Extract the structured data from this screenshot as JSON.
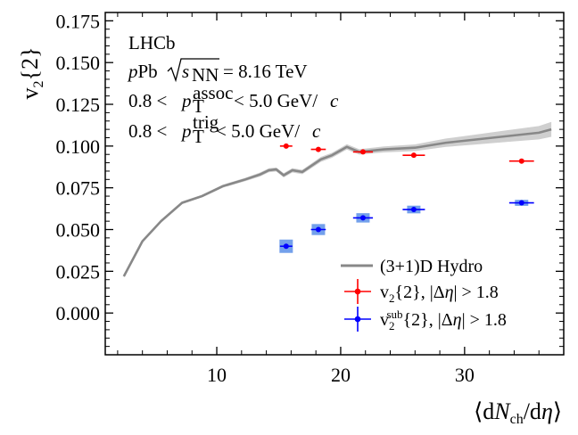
{
  "chart_data": {
    "type": "scatter",
    "title": "",
    "xlabel_parts": [
      "⟨d",
      "N",
      "ch",
      "/d",
      "η",
      "⟩"
    ],
    "ylabel_parts": [
      "v",
      "2",
      "{2}"
    ],
    "xlim": [
      1,
      38
    ],
    "ylim": [
      -0.025,
      0.18
    ],
    "x_ticks": [
      10,
      20,
      30
    ],
    "y_ticks": [
      0.0,
      0.025,
      0.05,
      0.075,
      0.1,
      0.125,
      0.15,
      0.175
    ],
    "x_tick_labels": [
      "10",
      "20",
      "30"
    ],
    "y_tick_labels": [
      "0.000",
      "0.025",
      "0.050",
      "0.075",
      "0.100",
      "0.125",
      "0.150",
      "0.175"
    ],
    "annotations": {
      "experiment": "LHCb",
      "system_p": "p",
      "system_rest": "Pb",
      "sqrt_s_label": "s",
      "sqrt_s_sub": "NN",
      "sqrt_s_value": "= 8.16 TeV",
      "assoc_low": "0.8 <",
      "assoc_p": "p",
      "assoc_sup": "assoc",
      "assoc_sub": "T",
      "assoc_high": "< 5.0 GeV/",
      "assoc_c": "c",
      "trig_low": "0.8 <",
      "trig_p": "p",
      "trig_sup": "trig",
      "trig_sub": "T",
      "trig_high": "< 5.0 GeV/",
      "trig_c": "c"
    },
    "legend_position": "bottom-right",
    "series": [
      {
        "name": "(3+1)D Hydro",
        "kind": "band",
        "color": "#888888",
        "band_color": "#cfcfcf",
        "x": [
          2.5,
          4,
          5.5,
          7.2,
          8.8,
          10.5,
          12.3,
          13.5,
          14.2,
          14.8,
          15.4,
          16.1,
          16.9,
          17.6,
          18.4,
          19.3,
          20.5,
          21.5,
          23.5,
          26,
          28.5,
          31,
          33.5,
          36,
          37
        ],
        "y": [
          0.022,
          0.043,
          0.055,
          0.066,
          0.07,
          0.076,
          0.08,
          0.083,
          0.0855,
          0.086,
          0.0825,
          0.0855,
          0.0845,
          0.088,
          0.092,
          0.0945,
          0.0995,
          0.0965,
          0.098,
          0.099,
          0.102,
          0.104,
          0.106,
          0.108,
          0.11
        ],
        "band_halfwidth": [
          0.0008,
          0.0008,
          0.0008,
          0.0008,
          0.0008,
          0.0009,
          0.001,
          0.0012,
          0.0012,
          0.0012,
          0.0013,
          0.0013,
          0.0013,
          0.0014,
          0.0015,
          0.0015,
          0.0016,
          0.0016,
          0.0018,
          0.002,
          0.0025,
          0.003,
          0.0035,
          0.004,
          0.0045
        ]
      },
      {
        "name_parts": [
          "v",
          "2",
          "{2}, |Δ",
          "η",
          "| > 1.8"
        ],
        "kind": "points",
        "color": "#ff0000",
        "x": [
          15.6,
          18.2,
          21.8,
          25.9,
          34.6
        ],
        "y": [
          0.1,
          0.098,
          0.0965,
          0.0945,
          0.091
        ],
        "x_err": [
          0.5,
          0.6,
          0.8,
          0.9,
          1.0
        ],
        "y_err": [
          0.0005,
          0.0005,
          0.0005,
          0.0005,
          0.0005
        ]
      },
      {
        "name_parts": [
          "v",
          "2",
          "sub",
          "{2}, |Δ",
          "η",
          "| > 1.8"
        ],
        "kind": "points_box",
        "color": "#0000ff",
        "box_color": "#5b8fe8",
        "x": [
          15.6,
          18.2,
          21.8,
          25.9,
          34.6
        ],
        "y": [
          0.04,
          0.05,
          0.057,
          0.062,
          0.066
        ],
        "x_err": [
          0.5,
          0.6,
          0.8,
          0.9,
          1.0
        ],
        "y_err": [
          0.0005,
          0.0005,
          0.0005,
          0.0005,
          0.0005
        ],
        "sys_err": [
          0.004,
          0.0033,
          0.0028,
          0.0023,
          0.0018
        ]
      }
    ]
  }
}
